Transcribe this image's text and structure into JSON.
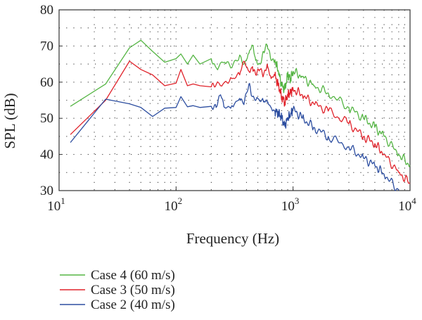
{
  "chart_data": {
    "type": "line",
    "title": "",
    "xlabel": "Frequency (Hz)",
    "ylabel": "SPL (dB)",
    "xscale": "log",
    "xlim": [
      10,
      10000
    ],
    "ylim": [
      30,
      80
    ],
    "grid": "dotted",
    "legend_position": "bottom-left",
    "x_ticks": [
      {
        "base": "10",
        "exp": "1"
      },
      {
        "base": "10",
        "exp": "2"
      },
      {
        "base": "10",
        "exp": "3"
      },
      {
        "base": "10",
        "exp": "4"
      }
    ],
    "y_ticks": [
      "30",
      "40",
      "50",
      "60",
      "70",
      "80"
    ],
    "series": [
      {
        "name": "Case 4 (60 m/s)",
        "color": "#55b544",
        "points": [
          [
            12.5,
            53.3
          ],
          [
            25,
            59.5
          ],
          [
            40,
            69.5
          ],
          [
            50,
            71.6
          ],
          [
            63,
            68.5
          ],
          [
            80,
            65.5
          ],
          [
            100,
            66.5
          ],
          [
            110,
            67.8
          ],
          [
            125,
            65
          ],
          [
            140,
            67.5
          ],
          [
            160,
            65
          ],
          [
            200,
            66.5
          ],
          [
            220,
            64
          ],
          [
            260,
            65.5
          ],
          [
            300,
            64
          ],
          [
            350,
            67.5
          ],
          [
            380,
            65
          ],
          [
            420,
            68
          ],
          [
            450,
            70.1
          ],
          [
            480,
            66
          ],
          [
            520,
            65
          ],
          [
            560,
            68.5
          ],
          [
            600,
            70.2
          ],
          [
            650,
            66
          ],
          [
            700,
            66.2
          ],
          [
            750,
            63
          ],
          [
            800,
            59
          ],
          [
            850,
            58
          ],
          [
            900,
            62
          ],
          [
            950,
            61
          ],
          [
            1000,
            63
          ],
          [
            1200,
            61.5
          ],
          [
            1500,
            59
          ],
          [
            2000,
            57
          ],
          [
            3000,
            53
          ],
          [
            4000,
            50
          ],
          [
            5000,
            47.5
          ],
          [
            6000,
            45
          ],
          [
            8000,
            40
          ],
          [
            10000,
            37
          ]
        ]
      },
      {
        "name": "Case 3 (50 m/s)",
        "color": "#e0232b",
        "points": [
          [
            12.5,
            45.5
          ],
          [
            25,
            55
          ],
          [
            40,
            65.8
          ],
          [
            50,
            63.5
          ],
          [
            63,
            62
          ],
          [
            80,
            59
          ],
          [
            100,
            59.7
          ],
          [
            110,
            63.5
          ],
          [
            125,
            59
          ],
          [
            140,
            59.5
          ],
          [
            160,
            59
          ],
          [
            200,
            58.7
          ],
          [
            220,
            59.3
          ],
          [
            260,
            60
          ],
          [
            300,
            61
          ],
          [
            350,
            62
          ],
          [
            380,
            65.8
          ],
          [
            420,
            63
          ],
          [
            450,
            64.3
          ],
          [
            480,
            62
          ],
          [
            520,
            63.5
          ],
          [
            560,
            62
          ],
          [
            600,
            65
          ],
          [
            650,
            61
          ],
          [
            700,
            61.8
          ],
          [
            750,
            59
          ],
          [
            800,
            56
          ],
          [
            850,
            54.5
          ],
          [
            900,
            56.5
          ],
          [
            950,
            57
          ],
          [
            1000,
            58
          ],
          [
            1200,
            56.5
          ],
          [
            1500,
            54
          ],
          [
            2000,
            52
          ],
          [
            3000,
            48.5
          ],
          [
            4000,
            45
          ],
          [
            5000,
            43
          ],
          [
            6000,
            40
          ],
          [
            8000,
            35
          ],
          [
            10000,
            32
          ]
        ]
      },
      {
        "name": "Case 2 (40 m/s)",
        "color": "#2d4ea0",
        "points": [
          [
            12.5,
            43.3
          ],
          [
            25,
            55.3
          ],
          [
            40,
            54
          ],
          [
            50,
            53
          ],
          [
            63,
            50.5
          ],
          [
            80,
            52.8
          ],
          [
            100,
            53
          ],
          [
            110,
            56
          ],
          [
            125,
            53.2
          ],
          [
            140,
            53.5
          ],
          [
            160,
            53
          ],
          [
            200,
            53.3
          ],
          [
            220,
            53
          ],
          [
            240,
            56.5
          ],
          [
            260,
            53
          ],
          [
            300,
            53.5
          ],
          [
            350,
            55.5
          ],
          [
            380,
            53.8
          ],
          [
            420,
            59.5
          ],
          [
            450,
            56
          ],
          [
            500,
            55.5
          ],
          [
            560,
            54.5
          ],
          [
            600,
            54.5
          ],
          [
            650,
            53
          ],
          [
            700,
            52
          ],
          [
            750,
            51.5
          ],
          [
            800,
            50
          ],
          [
            850,
            47.8
          ],
          [
            900,
            50
          ],
          [
            950,
            51
          ],
          [
            1000,
            52.5
          ],
          [
            1200,
            50
          ],
          [
            1500,
            47.5
          ],
          [
            2000,
            45
          ],
          [
            3000,
            42
          ],
          [
            4000,
            39
          ],
          [
            5000,
            37
          ],
          [
            6000,
            34.5
          ],
          [
            8000,
            30
          ]
        ]
      }
    ]
  }
}
